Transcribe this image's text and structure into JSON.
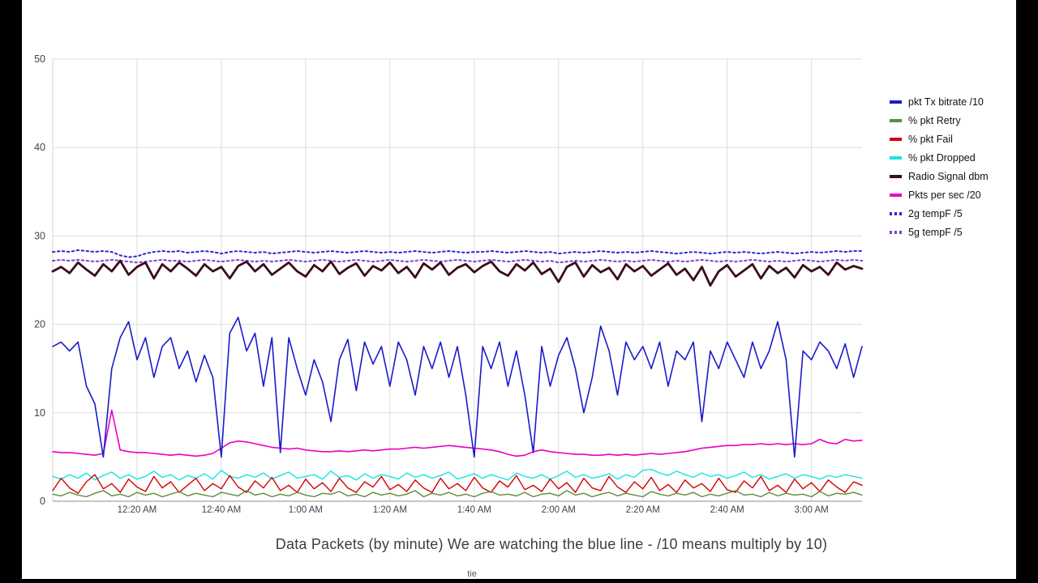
{
  "page": {
    "caption": "Data Packets  (by minute) We are watching the blue line -  /10 means multiply by 10)",
    "footer_note": "tie"
  },
  "frame": {
    "border_color": "#000000",
    "background": "#ffffff"
  },
  "chart_data": {
    "type": "line",
    "title": "",
    "xlabel": "",
    "ylabel": "",
    "grid": true,
    "legend_position": "right",
    "x_unit": "minutes after 12:00 AM",
    "x_range": [
      0,
      192
    ],
    "x_ticks": {
      "minutes": [
        20,
        40,
        60,
        80,
        100,
        120,
        140,
        160,
        180
      ],
      "labels": [
        "12:20 AM",
        "12:40 AM",
        "1:00 AM",
        "1:20 AM",
        "1:40 AM",
        "2:00 AM",
        "2:20 AM",
        "2:40 AM",
        "3:00 AM"
      ]
    },
    "y_axis": {
      "range": [
        0,
        50
      ],
      "ticks": [
        0,
        10,
        20,
        30,
        40,
        50
      ]
    },
    "x": [
      0,
      2,
      4,
      6,
      8,
      10,
      12,
      14,
      16,
      18,
      20,
      22,
      24,
      26,
      28,
      30,
      32,
      34,
      36,
      38,
      40,
      42,
      44,
      46,
      48,
      50,
      52,
      54,
      56,
      58,
      60,
      62,
      64,
      66,
      68,
      70,
      72,
      74,
      76,
      78,
      80,
      82,
      84,
      86,
      88,
      90,
      92,
      94,
      96,
      98,
      100,
      102,
      104,
      106,
      108,
      110,
      112,
      114,
      116,
      118,
      120,
      122,
      124,
      126,
      128,
      130,
      132,
      134,
      136,
      138,
      140,
      142,
      144,
      146,
      148,
      150,
      152,
      154,
      156,
      158,
      160,
      162,
      164,
      166,
      168,
      170,
      172,
      174,
      176,
      178,
      180,
      182,
      184,
      186,
      188,
      190,
      192
    ],
    "series": [
      {
        "name": "pkt Tx bitrate /10",
        "color": "#1a1acc",
        "style": "solid",
        "width": 1.6,
        "values": [
          17.5,
          18,
          17,
          18,
          13,
          11,
          5,
          15,
          18.5,
          20.3,
          16,
          18.5,
          14,
          17.5,
          18.5,
          15,
          17,
          13.5,
          16.5,
          14,
          5,
          19,
          20.8,
          17,
          19,
          13,
          18.5,
          5.5,
          18.5,
          15,
          12,
          16,
          13.5,
          9,
          16,
          18.3,
          12.5,
          18,
          15.5,
          17.5,
          13,
          18,
          16,
          12,
          17.5,
          15,
          18,
          14,
          17.5,
          12,
          5,
          17.5,
          15,
          18,
          13,
          17,
          12,
          5.5,
          17.5,
          13,
          16.5,
          18.5,
          15,
          10,
          14,
          19.8,
          17,
          12,
          18,
          16,
          17.5,
          15,
          18,
          13,
          17,
          16,
          18,
          9,
          17,
          15,
          18,
          16,
          14,
          18,
          15,
          17,
          20.3,
          16,
          5,
          17,
          16,
          18,
          17,
          15,
          17.8,
          14,
          17.5
        ]
      },
      {
        "name": "% pkt Retry",
        "color": "#5f8c3a",
        "style": "solid",
        "width": 1.4,
        "values": [
          0.8,
          0.6,
          1,
          0.7,
          0.5,
          0.9,
          1.2,
          0.6,
          0.8,
          0.5,
          1,
          0.7,
          0.9,
          0.5,
          0.8,
          1.1,
          0.6,
          0.9,
          0.7,
          0.5,
          1,
          0.8,
          0.6,
          1.2,
          0.7,
          0.9,
          0.5,
          0.8,
          0.6,
          1,
          0.7,
          0.5,
          0.9,
          0.8,
          1.1,
          0.6,
          0.8,
          0.5,
          1,
          0.7,
          0.9,
          0.6,
          0.8,
          1.2,
          0.5,
          0.9,
          0.7,
          1,
          0.6,
          0.8,
          0.5,
          0.9,
          1.1,
          0.7,
          0.8,
          0.6,
          1,
          0.5,
          0.8,
          0.9,
          0.6,
          1.2,
          0.7,
          0.9,
          0.5,
          0.8,
          1,
          0.6,
          0.9,
          0.7,
          0.5,
          1.1,
          0.8,
          0.6,
          0.9,
          0.7,
          1,
          0.5,
          0.8,
          0.6,
          0.9,
          1.2,
          0.7,
          0.8,
          0.5,
          1,
          0.6,
          0.9,
          0.7,
          0.8,
          0.5,
          1.1,
          0.6,
          0.9,
          0.8,
          1,
          0.7
        ]
      },
      {
        "name": "% pkt Fail",
        "color": "#d40000",
        "style": "solid",
        "width": 1.4,
        "values": [
          1.2,
          2.6,
          1.5,
          0.9,
          2.2,
          3,
          1.4,
          2,
          1,
          2.5,
          1.6,
          1.1,
          2.8,
          1.5,
          2.2,
          1,
          1.8,
          2.6,
          1.2,
          2,
          1.4,
          2.9,
          1.6,
          1,
          2.3,
          1.5,
          2.7,
          1.2,
          1.8,
          1,
          2.5,
          1.4,
          2.1,
          1.1,
          2.6,
          1.5,
          1,
          2.2,
          1.6,
          2.8,
          1.3,
          1.9,
          1.1,
          2.4,
          1.5,
          1,
          2.6,
          1.4,
          2,
          1.2,
          2.7,
          1.5,
          1,
          2.3,
          1.6,
          2.9,
          1.3,
          1.8,
          1.1,
          2.5,
          1.4,
          2.1,
          1,
          2.6,
          1.5,
          1.2,
          2.8,
          1.6,
          1,
          2.2,
          1.4,
          2.7,
          1.2,
          1.9,
          1,
          2.4,
          1.5,
          2,
          1.1,
          2.6,
          1.3,
          1,
          2.3,
          1.5,
          2.8,
          1.2,
          1.8,
          1,
          2.5,
          1.4,
          2.1,
          1.1,
          2.4,
          1.6,
          1,
          2.2,
          1.8
        ]
      },
      {
        "name": "% pkt Dropped",
        "color": "#17e4e4",
        "style": "solid",
        "width": 1.4,
        "values": [
          2.8,
          2.5,
          3,
          2.6,
          3.2,
          2.4,
          2.9,
          3.3,
          2.6,
          3,
          2.5,
          2.8,
          3.4,
          2.7,
          3,
          2.4,
          2.9,
          2.6,
          3.1,
          2.5,
          3.5,
          2.8,
          2.6,
          3,
          2.7,
          3.2,
          2.5,
          2.9,
          3.3,
          2.6,
          2.8,
          3,
          2.5,
          3.4,
          2.7,
          2.9,
          2.4,
          3.1,
          2.6,
          3,
          2.8,
          2.5,
          3.2,
          2.7,
          3,
          2.6,
          2.9,
          3.3,
          2.5,
          2.8,
          3.1,
          2.6,
          3,
          2.7,
          2.4,
          3.2,
          2.8,
          2.6,
          3,
          2.5,
          2.9,
          3.4,
          2.7,
          3,
          2.6,
          2.8,
          3.1,
          2.5,
          3,
          2.7,
          3.5,
          3.6,
          3.2,
          2.9,
          3.4,
          3,
          2.7,
          3.2,
          2.8,
          3,
          2.6,
          2.9,
          3.3,
          2.7,
          3,
          2.5,
          2.8,
          3.1,
          2.6,
          3,
          2.8,
          2.5,
          2.9,
          2.7,
          3,
          2.8,
          2.6
        ]
      },
      {
        "name": "Radio Signal dbm",
        "color": "#3a0d1c",
        "style": "solid",
        "width": 2.8,
        "values": [
          26,
          26.5,
          25.8,
          27,
          26.2,
          25.5,
          26.8,
          26,
          27.2,
          25.6,
          26.5,
          27,
          25.2,
          26.8,
          26,
          27,
          26.3,
          25.5,
          26.8,
          26,
          26.5,
          25.2,
          26.6,
          27.1,
          26,
          26.8,
          25.6,
          26.3,
          27,
          26,
          25.4,
          26.7,
          26,
          27.1,
          25.7,
          26.4,
          26.9,
          25.5,
          26.6,
          26.1,
          27,
          25.8,
          26.5,
          25.3,
          26.9,
          26.2,
          27,
          25.6,
          26.4,
          26.8,
          25.9,
          26.6,
          27.1,
          26,
          25.5,
          26.8,
          26.1,
          27,
          25.7,
          26.3,
          24.8,
          26.5,
          27,
          25.4,
          26.7,
          25.9,
          26.4,
          25.1,
          26.8,
          26,
          26.6,
          25.5,
          26.2,
          26.9,
          25.6,
          26.3,
          25,
          26.5,
          24.4,
          26,
          26.7,
          25.4,
          26.1,
          26.8,
          25.2,
          26.6,
          25.8,
          26.4,
          25.3,
          26.7,
          26,
          26.5,
          25.6,
          27,
          26.2,
          26.6,
          26.3
        ]
      },
      {
        "name": "Pkts per sec /20",
        "color": "#ea00c4",
        "style": "solid",
        "width": 1.6,
        "values": [
          5.6,
          5.5,
          5.5,
          5.4,
          5.3,
          5.2,
          5.4,
          10.3,
          5.8,
          5.6,
          5.5,
          5.5,
          5.4,
          5.3,
          5.2,
          5.3,
          5.2,
          5.1,
          5.2,
          5.4,
          6,
          6.6,
          6.8,
          6.7,
          6.5,
          6.3,
          6.1,
          6,
          5.9,
          6,
          5.8,
          5.7,
          5.6,
          5.6,
          5.7,
          5.6,
          5.7,
          5.8,
          5.7,
          5.8,
          5.9,
          5.9,
          6,
          6.1,
          6,
          6.1,
          6.2,
          6.3,
          6.2,
          6.1,
          6,
          5.9,
          5.8,
          5.6,
          5.3,
          5.1,
          5.2,
          5.6,
          5.8,
          5.6,
          5.5,
          5.4,
          5.3,
          5.3,
          5.2,
          5.2,
          5.3,
          5.2,
          5.3,
          5.2,
          5.3,
          5.4,
          5.3,
          5.4,
          5.5,
          5.6,
          5.8,
          6,
          6.1,
          6.2,
          6.3,
          6.3,
          6.4,
          6.4,
          6.5,
          6.4,
          6.5,
          6.4,
          6.5,
          6.4,
          6.5,
          7,
          6.6,
          6.5,
          7,
          6.8,
          6.9
        ]
      },
      {
        "name": "2g tempF /5",
        "color": "#2929d6",
        "style": "dotted",
        "width": 2,
        "values": [
          28.2,
          28.3,
          28.2,
          28.4,
          28.3,
          28.2,
          28.3,
          28.2,
          27.8,
          27.6,
          27.7,
          28,
          28.2,
          28.3,
          28.2,
          28.3,
          28.1,
          28.2,
          28.3,
          28.2,
          28,
          28.2,
          28.3,
          28.2,
          28.1,
          28.2,
          28,
          28.1,
          28.2,
          28.3,
          28.2,
          28.1,
          28.2,
          28.3,
          28.2,
          28.1,
          28.2,
          28.3,
          28.2,
          28.1,
          28.2,
          28.1,
          28.2,
          28.3,
          28.2,
          28.1,
          28.2,
          28.3,
          28.2,
          28.1,
          28.2,
          28.2,
          28.3,
          28.2,
          28.1,
          28.2,
          28.3,
          28.2,
          28.1,
          28.2,
          28,
          28.1,
          28.2,
          28.1,
          28.2,
          28.3,
          28.2,
          28.1,
          28.2,
          28.1,
          28.2,
          28.3,
          28.2,
          28.1,
          28,
          28.1,
          28.2,
          28.1,
          28,
          28.1,
          28.2,
          28.1,
          28.2,
          28.1,
          28,
          28.1,
          28.2,
          28.1,
          28,
          28.1,
          28.2,
          28.1,
          28.2,
          28.3,
          28.2,
          28.3,
          28.3
        ]
      },
      {
        "name": "5g tempF /5",
        "color": "#8040d0",
        "style": "dotted",
        "width": 2,
        "values": [
          27.2,
          27.3,
          27.2,
          27.3,
          27.2,
          27.1,
          27.2,
          27.3,
          27.2,
          27.1,
          27,
          27.1,
          27.2,
          27.3,
          27.2,
          27.2,
          27.1,
          27.2,
          27.3,
          27.2,
          27.1,
          27.2,
          27.3,
          27.2,
          27.1,
          27.2,
          27.1,
          27.2,
          27.3,
          27.2,
          27.1,
          27.2,
          27.3,
          27.2,
          27.1,
          27.2,
          27.3,
          27.2,
          27.1,
          27.2,
          27.3,
          27.2,
          27.1,
          27.2,
          27.3,
          27.2,
          27.1,
          27.2,
          27.3,
          27.2,
          27.1,
          27.2,
          27.3,
          27.2,
          27.1,
          27.2,
          27.3,
          27.2,
          27.1,
          27.2,
          27,
          27.1,
          27.2,
          27.1,
          27.2,
          27.3,
          27.2,
          27.1,
          27.2,
          27.1,
          27.2,
          27.3,
          27.2,
          27.1,
          27.2,
          27.1,
          27.2,
          27.3,
          27.2,
          27.1,
          27.2,
          27.1,
          27.2,
          27.3,
          27.2,
          27.1,
          27.2,
          27.1,
          27.2,
          27.3,
          27.2,
          27.1,
          27.2,
          27.3,
          27.2,
          27.3,
          27.2
        ]
      }
    ],
    "draw_order": [
      6,
      7,
      4,
      5,
      3,
      2,
      1,
      0
    ]
  }
}
